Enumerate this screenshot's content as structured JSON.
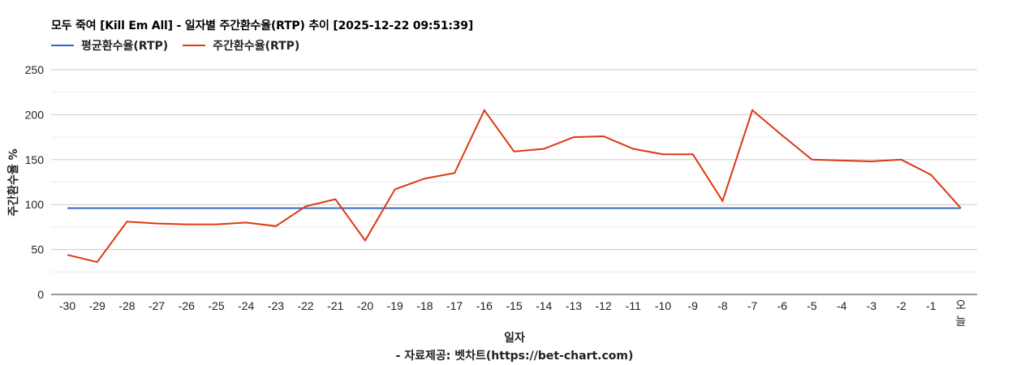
{
  "header": {
    "title": "모두 죽여 [Kill Em All] - 일자별 주간환수율(RTP) 추이 [2025-12-22 09:51:39]"
  },
  "legend": [
    {
      "label": "평균환수율(RTP)",
      "color": "#3366cc"
    },
    {
      "label": "주간환수율(RTP)",
      "color": "#dc3912"
    }
  ],
  "axes": {
    "ylabel": "주간환수율 %",
    "xlabel": "일자",
    "source": "- 자료제공: 벳차트(https://bet-chart.com)"
  },
  "chart_data": {
    "type": "line",
    "title": "모두 죽여 [Kill Em All] - 일자별 주간환수율(RTP) 추이 [2025-12-22 09:51:39]",
    "xlabel": "일자",
    "ylabel": "주간환수율 %",
    "ylim": [
      0,
      250
    ],
    "yticks": [
      0,
      50,
      100,
      150,
      200,
      250
    ],
    "grid": true,
    "legend_position": "top",
    "categories": [
      "-30",
      "-29",
      "-28",
      "-27",
      "-26",
      "-25",
      "-24",
      "-23",
      "-22",
      "-21",
      "-20",
      "-19",
      "-18",
      "-17",
      "-16",
      "-15",
      "-14",
      "-13",
      "-12",
      "-11",
      "-10",
      "-9",
      "-8",
      "-7",
      "-6",
      "-5",
      "-4",
      "-3",
      "-2",
      "-1",
      "오늘"
    ],
    "series": [
      {
        "name": "평균환수율(RTP)",
        "color": "#3366cc",
        "values": [
          96,
          96,
          96,
          96,
          96,
          96,
          96,
          96,
          96,
          96,
          96,
          96,
          96,
          96,
          96,
          96,
          96,
          96,
          96,
          96,
          96,
          96,
          96,
          96,
          96,
          96,
          96,
          96,
          96,
          96,
          96
        ]
      },
      {
        "name": "주간환수율(RTP)",
        "color": "#dc3912",
        "values": [
          44,
          36,
          81,
          79,
          78,
          78,
          80,
          76,
          98,
          106,
          60,
          117,
          129,
          135,
          205,
          159,
          162,
          175,
          176,
          162,
          156,
          156,
          104,
          205,
          177,
          150,
          149,
          148,
          150,
          133,
          96
        ]
      }
    ]
  }
}
